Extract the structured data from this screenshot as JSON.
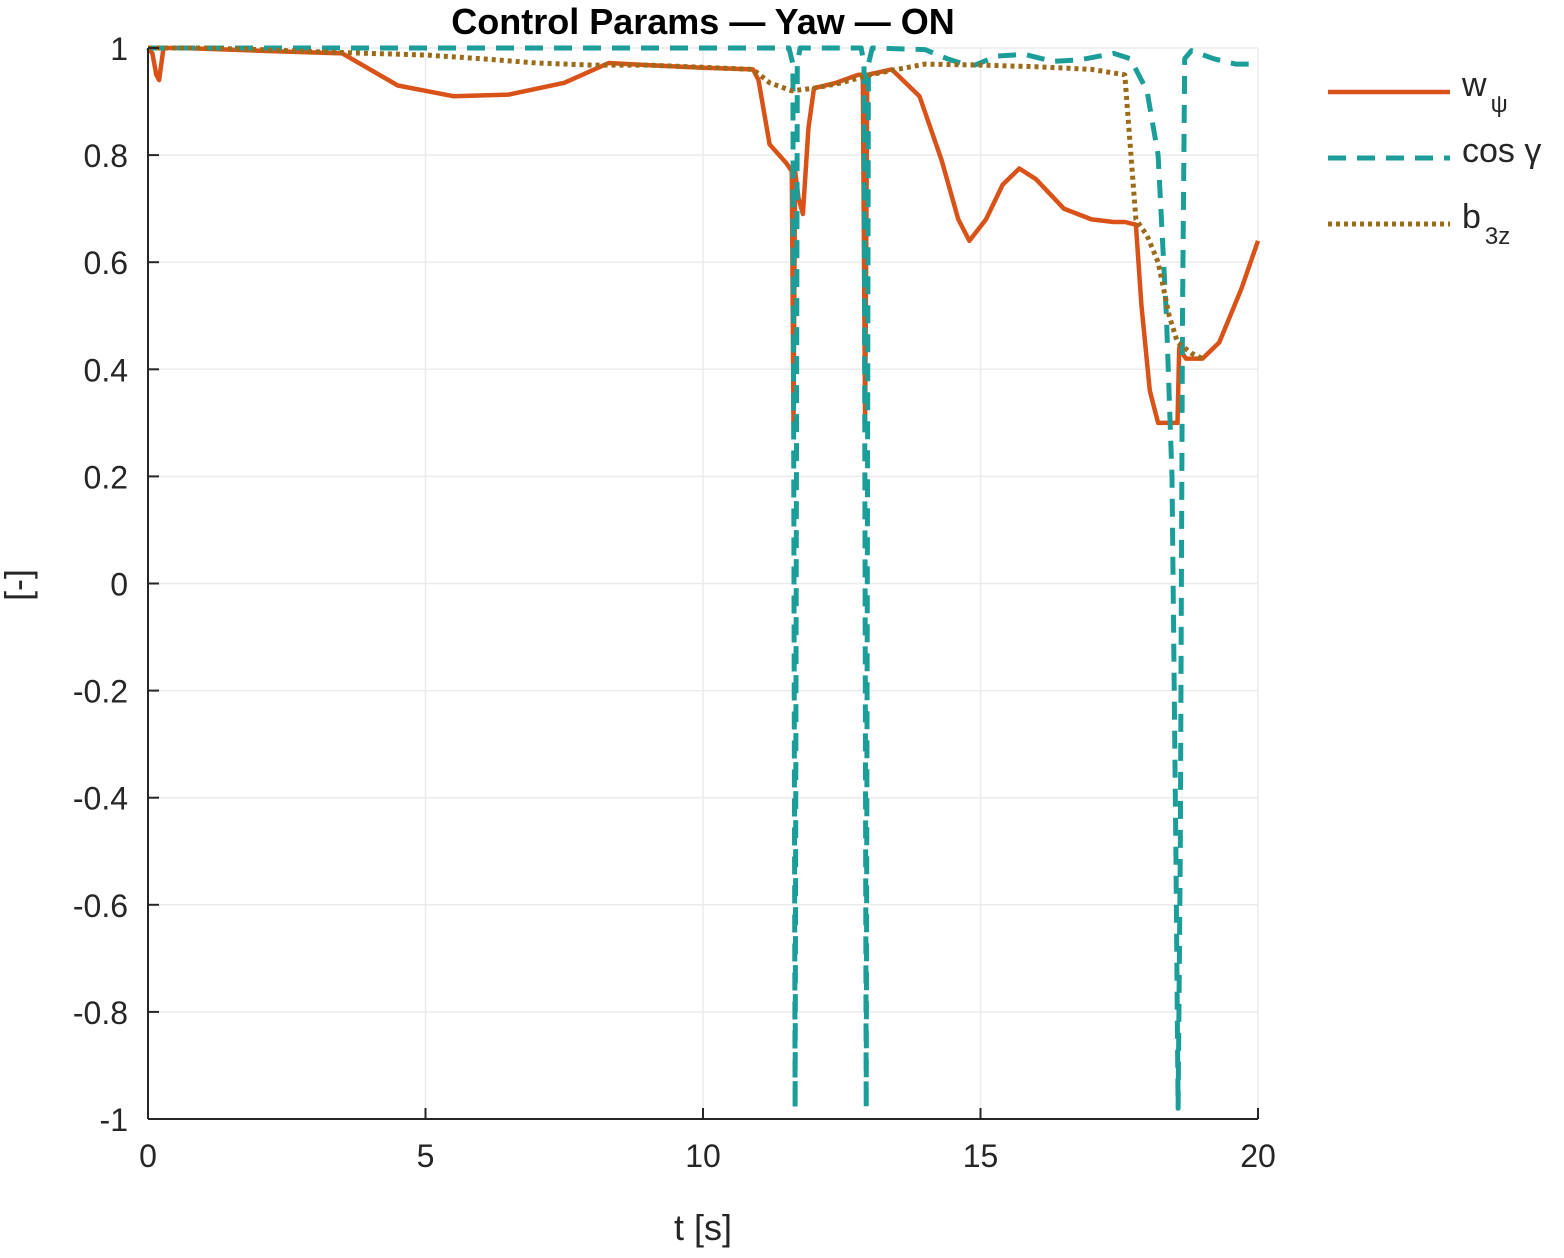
{
  "chart_data": {
    "type": "line",
    "title": "Control Params — Yaw — ON",
    "xlabel": "t [s]",
    "ylabel": "[-]",
    "xlim": [
      0,
      20
    ],
    "ylim": [
      -1,
      1
    ],
    "xticks": [
      0,
      5,
      10,
      15,
      20
    ],
    "yticks": [
      -1,
      -0.8,
      -0.6,
      -0.4,
      -0.2,
      0,
      0.2,
      0.4,
      0.6,
      0.8,
      1
    ],
    "xtick_labels": [
      "0",
      "5",
      "10",
      "15",
      "20"
    ],
    "ytick_labels": [
      "-1",
      "-0.8",
      "-0.6",
      "-0.4",
      "-0.2",
      "0",
      "0.2",
      "0.4",
      "0.6",
      "0.8",
      "1"
    ],
    "grid": true,
    "legend_position": "outside top-right",
    "colors": {
      "w_psi": "#D95319",
      "cos_gamma": "#1B9E9A",
      "b3z": "#9B6B1A",
      "axis": "#262626",
      "grid": "#ebebeb"
    },
    "series": [
      {
        "key": "w_psi",
        "legend_main": "w",
        "legend_sub": "ψ",
        "style": "solid",
        "color": "#D95319",
        "points": [
          [
            0,
            1
          ],
          [
            0.08,
            0.99
          ],
          [
            0.15,
            0.95
          ],
          [
            0.2,
            0.94
          ],
          [
            0.28,
            1
          ],
          [
            0.6,
            1
          ],
          [
            2,
            0.995
          ],
          [
            3.5,
            0.99
          ],
          [
            4.5,
            0.93
          ],
          [
            5.5,
            0.91
          ],
          [
            6.5,
            0.913
          ],
          [
            7.5,
            0.935
          ],
          [
            8.3,
            0.972
          ],
          [
            9,
            0.968
          ],
          [
            10,
            0.963
          ],
          [
            10.9,
            0.96
          ],
          [
            11,
            0.94
          ],
          [
            11.2,
            0.82
          ],
          [
            11.5,
            0.785
          ],
          [
            11.6,
            0.77
          ],
          [
            11.63,
            0.3
          ],
          [
            11.66,
            0.77
          ],
          [
            11.72,
            0.72
          ],
          [
            11.8,
            0.69
          ],
          [
            11.9,
            0.85
          ],
          [
            12,
            0.925
          ],
          [
            12.4,
            0.935
          ],
          [
            12.8,
            0.95
          ],
          [
            12.88,
            0.95
          ],
          [
            12.92,
            0.3
          ],
          [
            12.96,
            0.95
          ],
          [
            13.4,
            0.96
          ],
          [
            13.9,
            0.91
          ],
          [
            14.3,
            0.79
          ],
          [
            14.6,
            0.68
          ],
          [
            14.8,
            0.64
          ],
          [
            15.1,
            0.68
          ],
          [
            15.4,
            0.745
          ],
          [
            15.7,
            0.775
          ],
          [
            16,
            0.755
          ],
          [
            16.5,
            0.7
          ],
          [
            17,
            0.68
          ],
          [
            17.4,
            0.675
          ],
          [
            17.6,
            0.675
          ],
          [
            17.8,
            0.67
          ],
          [
            17.9,
            0.52
          ],
          [
            18.05,
            0.36
          ],
          [
            18.2,
            0.3
          ],
          [
            18.55,
            0.3
          ],
          [
            18.58,
            0.44
          ],
          [
            18.7,
            0.42
          ],
          [
            19,
            0.42
          ],
          [
            19.3,
            0.45
          ],
          [
            19.7,
            0.55
          ],
          [
            20,
            0.64
          ]
        ]
      },
      {
        "key": "cos_gamma",
        "legend_main": "cos γ",
        "legend_sub": "",
        "style": "dashed",
        "color": "#1B9E9A",
        "points": [
          [
            0,
            1
          ],
          [
            2,
            1
          ],
          [
            4,
            1
          ],
          [
            6,
            1
          ],
          [
            8,
            1
          ],
          [
            10,
            1
          ],
          [
            11,
            1
          ],
          [
            11.55,
            1
          ],
          [
            11.62,
            0.97
          ],
          [
            11.66,
            -0.98
          ],
          [
            11.7,
            0.97
          ],
          [
            11.75,
            1
          ],
          [
            12.85,
            1
          ],
          [
            12.9,
            0.97
          ],
          [
            12.94,
            -0.98
          ],
          [
            12.98,
            0.97
          ],
          [
            13.05,
            1
          ],
          [
            14,
            0.997
          ],
          [
            14.4,
            0.98
          ],
          [
            14.7,
            0.97
          ],
          [
            14.9,
            0.968
          ],
          [
            15.3,
            0.985
          ],
          [
            15.8,
            0.988
          ],
          [
            16.3,
            0.975
          ],
          [
            16.8,
            0.978
          ],
          [
            17.4,
            0.99
          ],
          [
            17.7,
            0.98
          ],
          [
            18,
            0.92
          ],
          [
            18.2,
            0.8
          ],
          [
            18.35,
            0.5
          ],
          [
            18.45,
            0.2
          ],
          [
            18.52,
            -0.5
          ],
          [
            18.56,
            -0.98
          ],
          [
            18.6,
            -0.5
          ],
          [
            18.64,
            0.5
          ],
          [
            18.68,
            0.98
          ],
          [
            18.8,
            0.995
          ],
          [
            19.2,
            0.98
          ],
          [
            19.6,
            0.97
          ],
          [
            20,
            0.97
          ]
        ]
      },
      {
        "key": "b3z",
        "legend_main": "b",
        "legend_sub": "3z",
        "style": "dotted",
        "color": "#9B6B1A",
        "points": [
          [
            0,
            1
          ],
          [
            1,
            1
          ],
          [
            2,
            0.997
          ],
          [
            3,
            0.993
          ],
          [
            4,
            0.99
          ],
          [
            5,
            0.987
          ],
          [
            6,
            0.98
          ],
          [
            7,
            0.972
          ],
          [
            8,
            0.968
          ],
          [
            9,
            0.968
          ],
          [
            10,
            0.964
          ],
          [
            10.9,
            0.96
          ],
          [
            11.2,
            0.935
          ],
          [
            11.6,
            0.92
          ],
          [
            12,
            0.925
          ],
          [
            12.5,
            0.935
          ],
          [
            13,
            0.95
          ],
          [
            13.5,
            0.96
          ],
          [
            14,
            0.97
          ],
          [
            15,
            0.968
          ],
          [
            16,
            0.965
          ],
          [
            17,
            0.96
          ],
          [
            17.6,
            0.95
          ],
          [
            17.8,
            0.68
          ],
          [
            18,
            0.65
          ],
          [
            18.2,
            0.6
          ],
          [
            18.4,
            0.5
          ],
          [
            18.55,
            0.45
          ],
          [
            18.8,
            0.43
          ],
          [
            19,
            0.42
          ]
        ]
      }
    ]
  }
}
